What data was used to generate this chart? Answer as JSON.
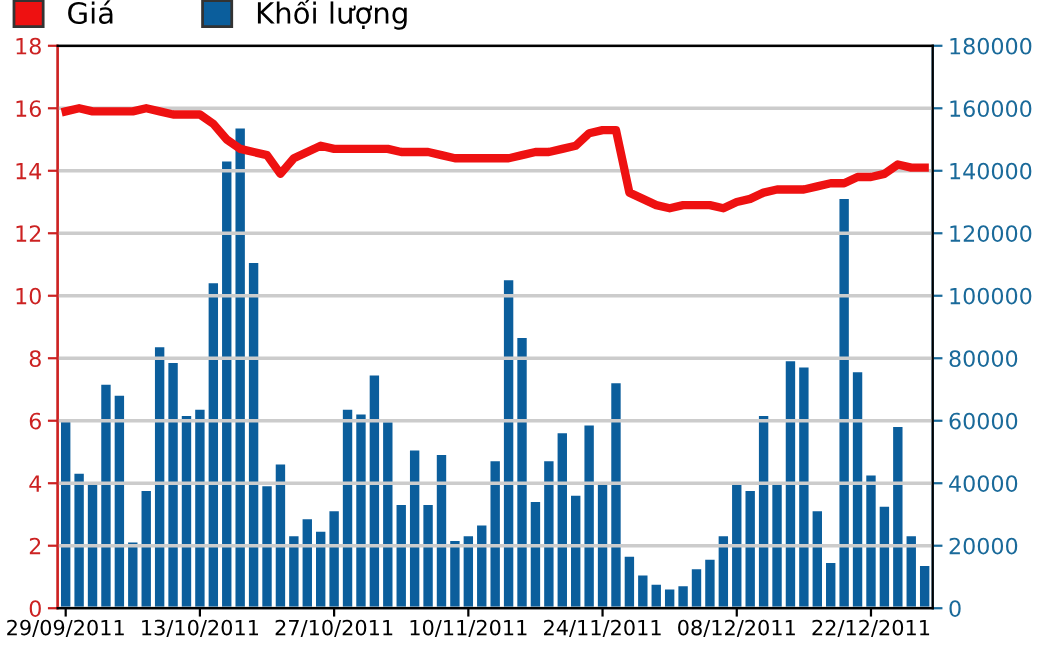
{
  "chart_data": {
    "type": "bar",
    "categories": [
      "29/09/2011",
      null,
      null,
      null,
      null,
      null,
      null,
      null,
      null,
      null,
      "13/10/2011",
      null,
      null,
      null,
      null,
      null,
      null,
      null,
      null,
      null,
      "27/10/2011",
      null,
      null,
      null,
      null,
      null,
      null,
      null,
      null,
      null,
      "10/11/2011",
      null,
      null,
      null,
      null,
      null,
      null,
      null,
      null,
      null,
      "24/11/2011",
      null,
      null,
      null,
      null,
      null,
      null,
      null,
      null,
      null,
      "08/12/2011",
      null,
      null,
      null,
      null,
      null,
      null,
      null,
      null,
      null,
      "22/12/2011",
      null,
      null,
      null,
      null
    ],
    "series": [
      {
        "name": "Giá",
        "type": "line",
        "axis": "y",
        "color": "#ee1111",
        "values": [
          15.9,
          16.0,
          15.9,
          15.9,
          15.9,
          15.9,
          16.0,
          15.9,
          15.8,
          15.8,
          15.8,
          15.5,
          15.0,
          14.7,
          14.6,
          14.5,
          13.9,
          14.4,
          14.6,
          14.8,
          14.7,
          14.7,
          14.7,
          14.7,
          14.7,
          14.6,
          14.6,
          14.6,
          14.5,
          14.4,
          14.4,
          14.4,
          14.4,
          14.4,
          14.5,
          14.6,
          14.6,
          14.7,
          14.8,
          15.2,
          15.3,
          15.3,
          13.3,
          13.1,
          12.9,
          12.8,
          12.9,
          12.9,
          12.9,
          12.8,
          13.0,
          13.1,
          13.3,
          13.4,
          13.4,
          13.4,
          13.5,
          13.6,
          13.6,
          13.8,
          13.8,
          13.9,
          14.2,
          14.1,
          14.1
        ]
      },
      {
        "name": "Khối lượng",
        "axis": "y2",
        "color": "#0b5e9c",
        "values": [
          60000,
          43000,
          40000,
          71500,
          68000,
          21000,
          37500,
          83500,
          78500,
          61500,
          63500,
          104000,
          143000,
          153500,
          110500,
          39000,
          46000,
          23000,
          28500,
          24500,
          31000,
          63500,
          62000,
          74500,
          59500,
          33000,
          50500,
          33000,
          49000,
          21500,
          23000,
          26500,
          47000,
          105000,
          86500,
          34000,
          47000,
          56000,
          36000,
          58500,
          40000,
          72000,
          16500,
          10500,
          7500,
          6000,
          7000,
          12500,
          15500,
          23000,
          39500,
          37500,
          61500,
          40000,
          79000,
          77000,
          31000,
          14500,
          131000,
          75500,
          42500,
          32500,
          58000,
          23000,
          13500
        ]
      }
    ],
    "ylim": [
      0,
      18
    ],
    "yticks": [
      0,
      2,
      4,
      6,
      8,
      10,
      12,
      14,
      16,
      18
    ],
    "y2lim": [
      0,
      180000
    ],
    "y2ticks": [
      0,
      20000,
      40000,
      60000,
      80000,
      100000,
      120000,
      140000,
      160000,
      180000
    ],
    "grid": "y",
    "legend": "top left"
  }
}
